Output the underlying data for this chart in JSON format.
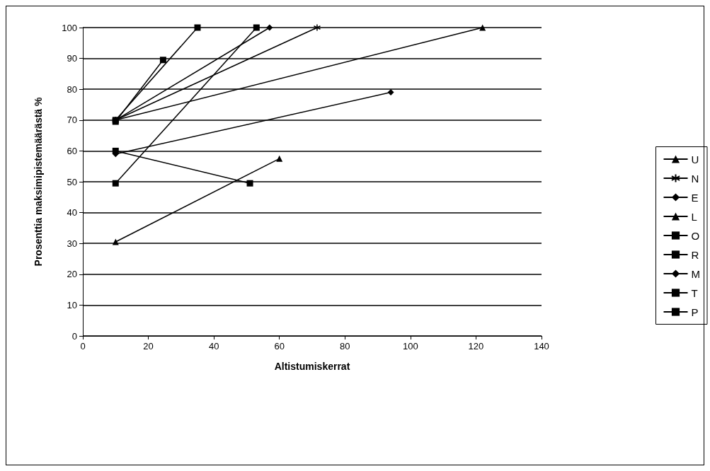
{
  "chart_data": {
    "type": "line",
    "xlabel": "Altistumiskerrat",
    "ylabel": "Prosenttia maksimipistemäärästä %",
    "xlim": [
      0,
      140
    ],
    "xticks": [
      0,
      20,
      40,
      60,
      80,
      100,
      120,
      140
    ],
    "ylim": [
      0,
      100
    ],
    "yticks": [
      0,
      10,
      20,
      30,
      40,
      50,
      60,
      70,
      80,
      90,
      100
    ],
    "grid": "y",
    "legend": "right",
    "line_style": "solid",
    "series": [
      {
        "name": "U",
        "color": "#000000",
        "marker": "triangle",
        "x": [
          10,
          122
        ],
        "values": [
          70,
          100
        ]
      },
      {
        "name": "N",
        "color": "#000000",
        "marker": "cross",
        "x": [
          10,
          71.5
        ],
        "values": [
          70,
          100
        ]
      },
      {
        "name": "E",
        "color": "#000000",
        "marker": "diamond",
        "x": [
          10,
          94
        ],
        "values": [
          59,
          79
        ]
      },
      {
        "name": "L",
        "color": "#000000",
        "marker": "triangle",
        "x": [
          10,
          60
        ],
        "values": [
          30.5,
          57.5
        ]
      },
      {
        "name": "O",
        "color": "#000000",
        "marker": "square",
        "x": [
          10,
          53
        ],
        "values": [
          49.5,
          100
        ]
      },
      {
        "name": "R",
        "color": "#000000",
        "marker": "square",
        "x": [
          10,
          35
        ],
        "values": [
          70,
          100
        ]
      },
      {
        "name": "M",
        "color": "#000000",
        "marker": "diamond",
        "x": [
          10,
          57
        ],
        "values": [
          70,
          100
        ]
      },
      {
        "name": "T",
        "color": "#000000",
        "marker": "square",
        "x": [
          10,
          51
        ],
        "values": [
          60,
          49.5
        ]
      },
      {
        "name": "P",
        "color": "#000000",
        "marker": "square",
        "x": [
          10,
          24.5
        ],
        "values": [
          69.5,
          89.5
        ]
      }
    ]
  }
}
